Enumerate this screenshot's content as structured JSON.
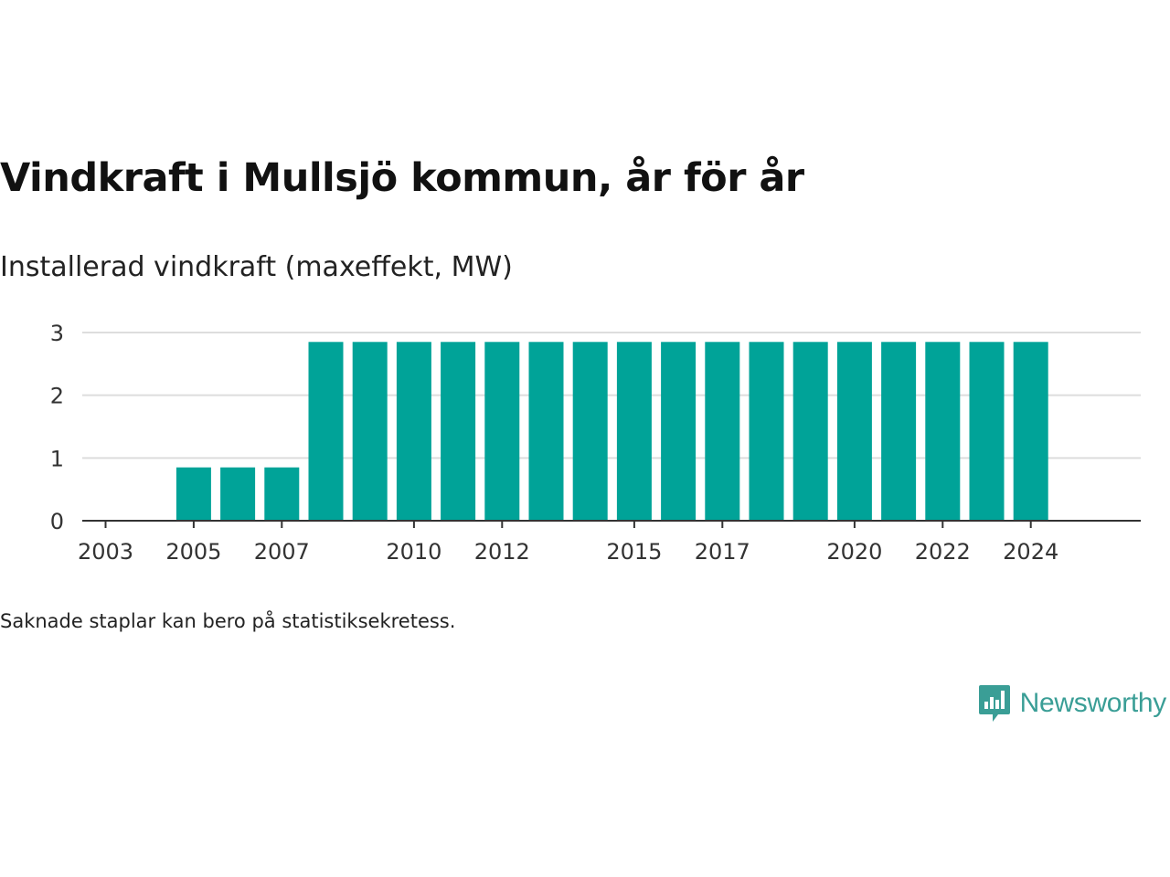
{
  "title": "Vindkraft i Mullsjö kommun, år för år",
  "subtitle": "Installerad vindkraft (maxeffekt, MW)",
  "footnote": "Saknade staplar kan bero på statistiksekretess.",
  "brand": {
    "name": "Newsworthy",
    "color": "#3a9e96",
    "icon": "bar-chart-speech-bubble-icon"
  },
  "chart_data": {
    "type": "bar",
    "bar_color": "#00a398",
    "grid": true,
    "ylim": [
      0,
      3
    ],
    "yticks": [
      0,
      1,
      2,
      3
    ],
    "categories": [
      2003,
      2004,
      2005,
      2006,
      2007,
      2008,
      2009,
      2010,
      2011,
      2012,
      2013,
      2014,
      2015,
      2016,
      2017,
      2018,
      2019,
      2020,
      2021,
      2022,
      2023,
      2024
    ],
    "values": [
      0,
      0,
      0.85,
      0.85,
      0.85,
      2.85,
      2.85,
      2.85,
      2.85,
      2.85,
      2.85,
      2.85,
      2.85,
      2.85,
      2.85,
      2.85,
      2.85,
      2.85,
      2.85,
      2.85,
      2.85,
      2.85
    ],
    "xtick_labels": [
      "2003",
      "2005",
      "2007",
      "2010",
      "2012",
      "2015",
      "2017",
      "2020",
      "2022",
      "2024"
    ],
    "xlabel": "",
    "ylabel": ""
  }
}
